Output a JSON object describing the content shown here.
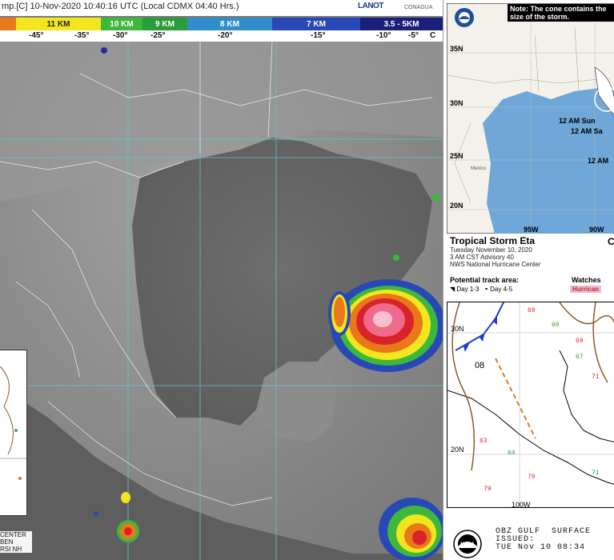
{
  "satellite": {
    "title": "mp.[C] 10-Nov-2020 10:40:16 UTC (Local CDMX  04:40 Hrs.)",
    "logo_lanot": "LANOT",
    "logo_conagua": "CONAGUA",
    "colorbar": [
      {
        "label": "",
        "color": "#e8781a"
      },
      {
        "label": "11 KM",
        "color": "#f4e61e"
      },
      {
        "label": "10 KM",
        "color": "#3cb93c"
      },
      {
        "label": "9 KM",
        "color": "#2a9c3a"
      },
      {
        "label": "8 KM",
        "color": "#2f8ec9"
      },
      {
        "label": "7 KM",
        "color": "#2848b8"
      },
      {
        "label": "3.5 - 5KM",
        "color": "#1a1f7a"
      }
    ],
    "temps": [
      "-45°",
      "-35°",
      "-30°",
      "-25°",
      "-20°",
      "-15°",
      "-10°",
      "-5°",
      "C"
    ],
    "bottom_left_text": [
      "CENTER",
      "BEN",
      "RSI NH"
    ]
  },
  "nhc": {
    "note": "Note: The cone contains the size of the storm.",
    "lat_labels": [
      "35N",
      "30N",
      "25N",
      "20N"
    ],
    "lon_labels": [
      "95W",
      "90W"
    ],
    "track_labels": [
      "12 AM Sun",
      "12 AM Sa",
      "12 AM"
    ],
    "region_labels": [
      "Mexico"
    ],
    "storm": {
      "name": "Tropical Storm Eta",
      "date": "Tuesday November 10, 2020",
      "advisory": "3 AM CST Advisory 40",
      "center": "NWS National Hurricane Center"
    },
    "right_letter": "C",
    "legend": {
      "potential": "Potential track area:",
      "day13": "Day 1-3",
      "day45": "Day 4-5",
      "watches": "Watches",
      "hurricane": "Hurrican"
    }
  },
  "surface": {
    "lat_labels": [
      "30N",
      "20N"
    ],
    "lon_label": "100W",
    "front_label": "08",
    "footer_line1": "OBZ GULF  SURFACE",
    "footer_line2": "ISSUED:",
    "footer_line3": "TUE Nov 10 08:34",
    "noaa_label": "NOAA"
  }
}
